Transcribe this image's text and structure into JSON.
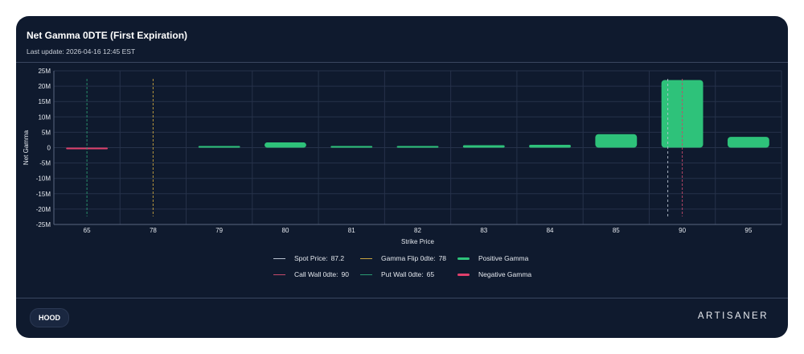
{
  "header": {
    "title": "Net Gamma 0DTE (First Expiration)",
    "last_update": "Last update: 2026-04-16 12:45 EST"
  },
  "colors": {
    "background": "#0f1a2e",
    "positive": "#2ec27a",
    "negative": "#e0406c",
    "spot": "#b9c2d0",
    "gamma_flip": "#c8a440",
    "call_wall": "#c44a6b",
    "put_wall": "#2a9a72",
    "grid": "#26324a"
  },
  "chart_data": {
    "type": "bar",
    "title": "Net Gamma 0DTE (First Expiration)",
    "xlabel": "Strike Price",
    "ylabel": "Net Gamma",
    "categories": [
      "65",
      "78",
      "79",
      "80",
      "81",
      "82",
      "83",
      "84",
      "85",
      "90",
      "95"
    ],
    "values": [
      -0.15,
      0,
      0.3,
      1.7,
      0.2,
      0.1,
      0.8,
      0.9,
      4.4,
      22.0,
      3.5
    ],
    "value_unit": "millions",
    "ylim": [
      -25,
      25
    ],
    "yticks": [
      25,
      20,
      15,
      10,
      5,
      0,
      -5,
      -10,
      -15,
      -20,
      -25
    ],
    "ytick_labels": [
      "25M",
      "20M",
      "15M",
      "10M",
      "5M",
      "0",
      "-5M",
      "-10M",
      "-15M",
      "-20M",
      "-25M"
    ],
    "grid": true,
    "reference_lines": [
      {
        "name": "Spot Price",
        "value": 87.2
      },
      {
        "name": "Gamma Flip 0dte",
        "value": 78
      },
      {
        "name": "Call Wall 0dte",
        "value": 90
      },
      {
        "name": "Put Wall 0dte",
        "value": 65
      }
    ],
    "legend": {
      "placement": "bottom-center",
      "spot": {
        "label": "Spot Price:",
        "value": "87.2"
      },
      "flip": {
        "label": "Gamma Flip 0dte:",
        "value": "78"
      },
      "call_wall": {
        "label": "Call Wall 0dte:",
        "value": "90"
      },
      "put_wall": {
        "label": "Put Wall 0dte:",
        "value": "65"
      },
      "positive": {
        "label": "Positive Gamma"
      },
      "negative": {
        "label": "Negative Gamma"
      }
    }
  },
  "footer": {
    "ticker": "HOOD",
    "brand": "ARTISANER"
  }
}
